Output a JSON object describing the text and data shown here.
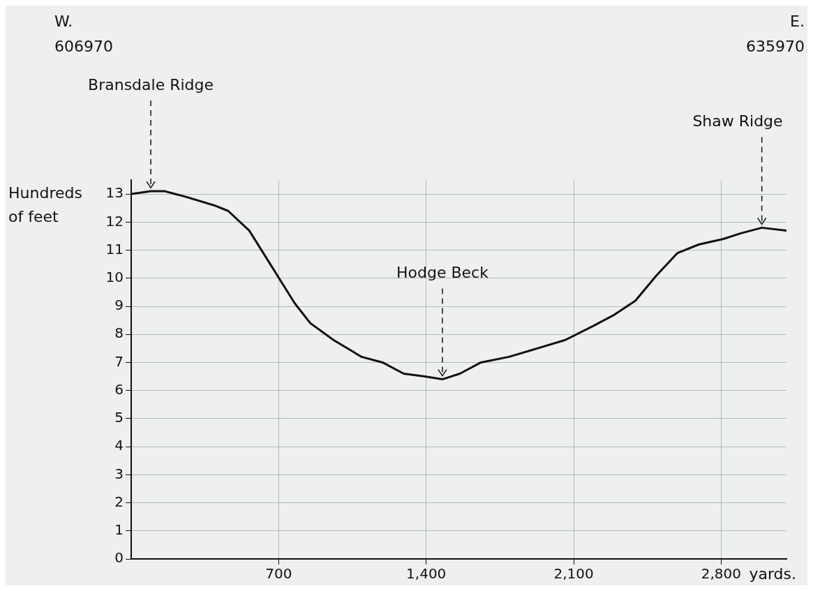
{
  "chart_data": {
    "type": "line",
    "xlabel": "yards.",
    "ylabel": "Hundreds of feet",
    "x": [
      0,
      93,
      160,
      260,
      393,
      460,
      560,
      627,
      710,
      777,
      850,
      960,
      1093,
      1193,
      1293,
      1393,
      1477,
      1560,
      1660,
      1793,
      1927,
      2060,
      2193,
      2293,
      2393,
      2493,
      2593,
      2693,
      2810,
      2893,
      2993,
      3110
    ],
    "series": [
      {
        "color": "#111111",
        "values": [
          13.0,
          13.1,
          13.1,
          12.9,
          12.6,
          12.4,
          11.7,
          10.9,
          9.9,
          9.1,
          8.4,
          7.8,
          7.2,
          7.0,
          6.6,
          6.5,
          6.4,
          6.6,
          7.0,
          7.2,
          7.5,
          7.8,
          8.3,
          8.7,
          9.2,
          10.1,
          10.9,
          11.2,
          11.4,
          11.6,
          11.8,
          11.7
        ]
      }
    ],
    "xlim": [
      0,
      3110
    ],
    "xticks": [
      {
        "value": 700,
        "label": "700"
      },
      {
        "value": 1400,
        "label": "1,400"
      },
      {
        "value": 2100,
        "label": "2,100"
      },
      {
        "value": 2800,
        "label": "2,800"
      }
    ],
    "ylim": [
      0,
      13.5
    ],
    "yticks": [
      0,
      1,
      2,
      3,
      4,
      5,
      6,
      7,
      8,
      9,
      10,
      11,
      12,
      13
    ],
    "grid": true,
    "legend": false,
    "marker": "none",
    "line_style": "solid",
    "annotations": [
      "W.\n606970",
      "E.\n635970",
      {
        "text": "Bransdale Ridge",
        "x": 93,
        "y": 13.1
      },
      {
        "text": "Hodge Beck",
        "x": 1477,
        "y": 6.4
      },
      {
        "text": "Shaw Ridge",
        "x": 2993,
        "y": 11.8
      }
    ]
  }
}
